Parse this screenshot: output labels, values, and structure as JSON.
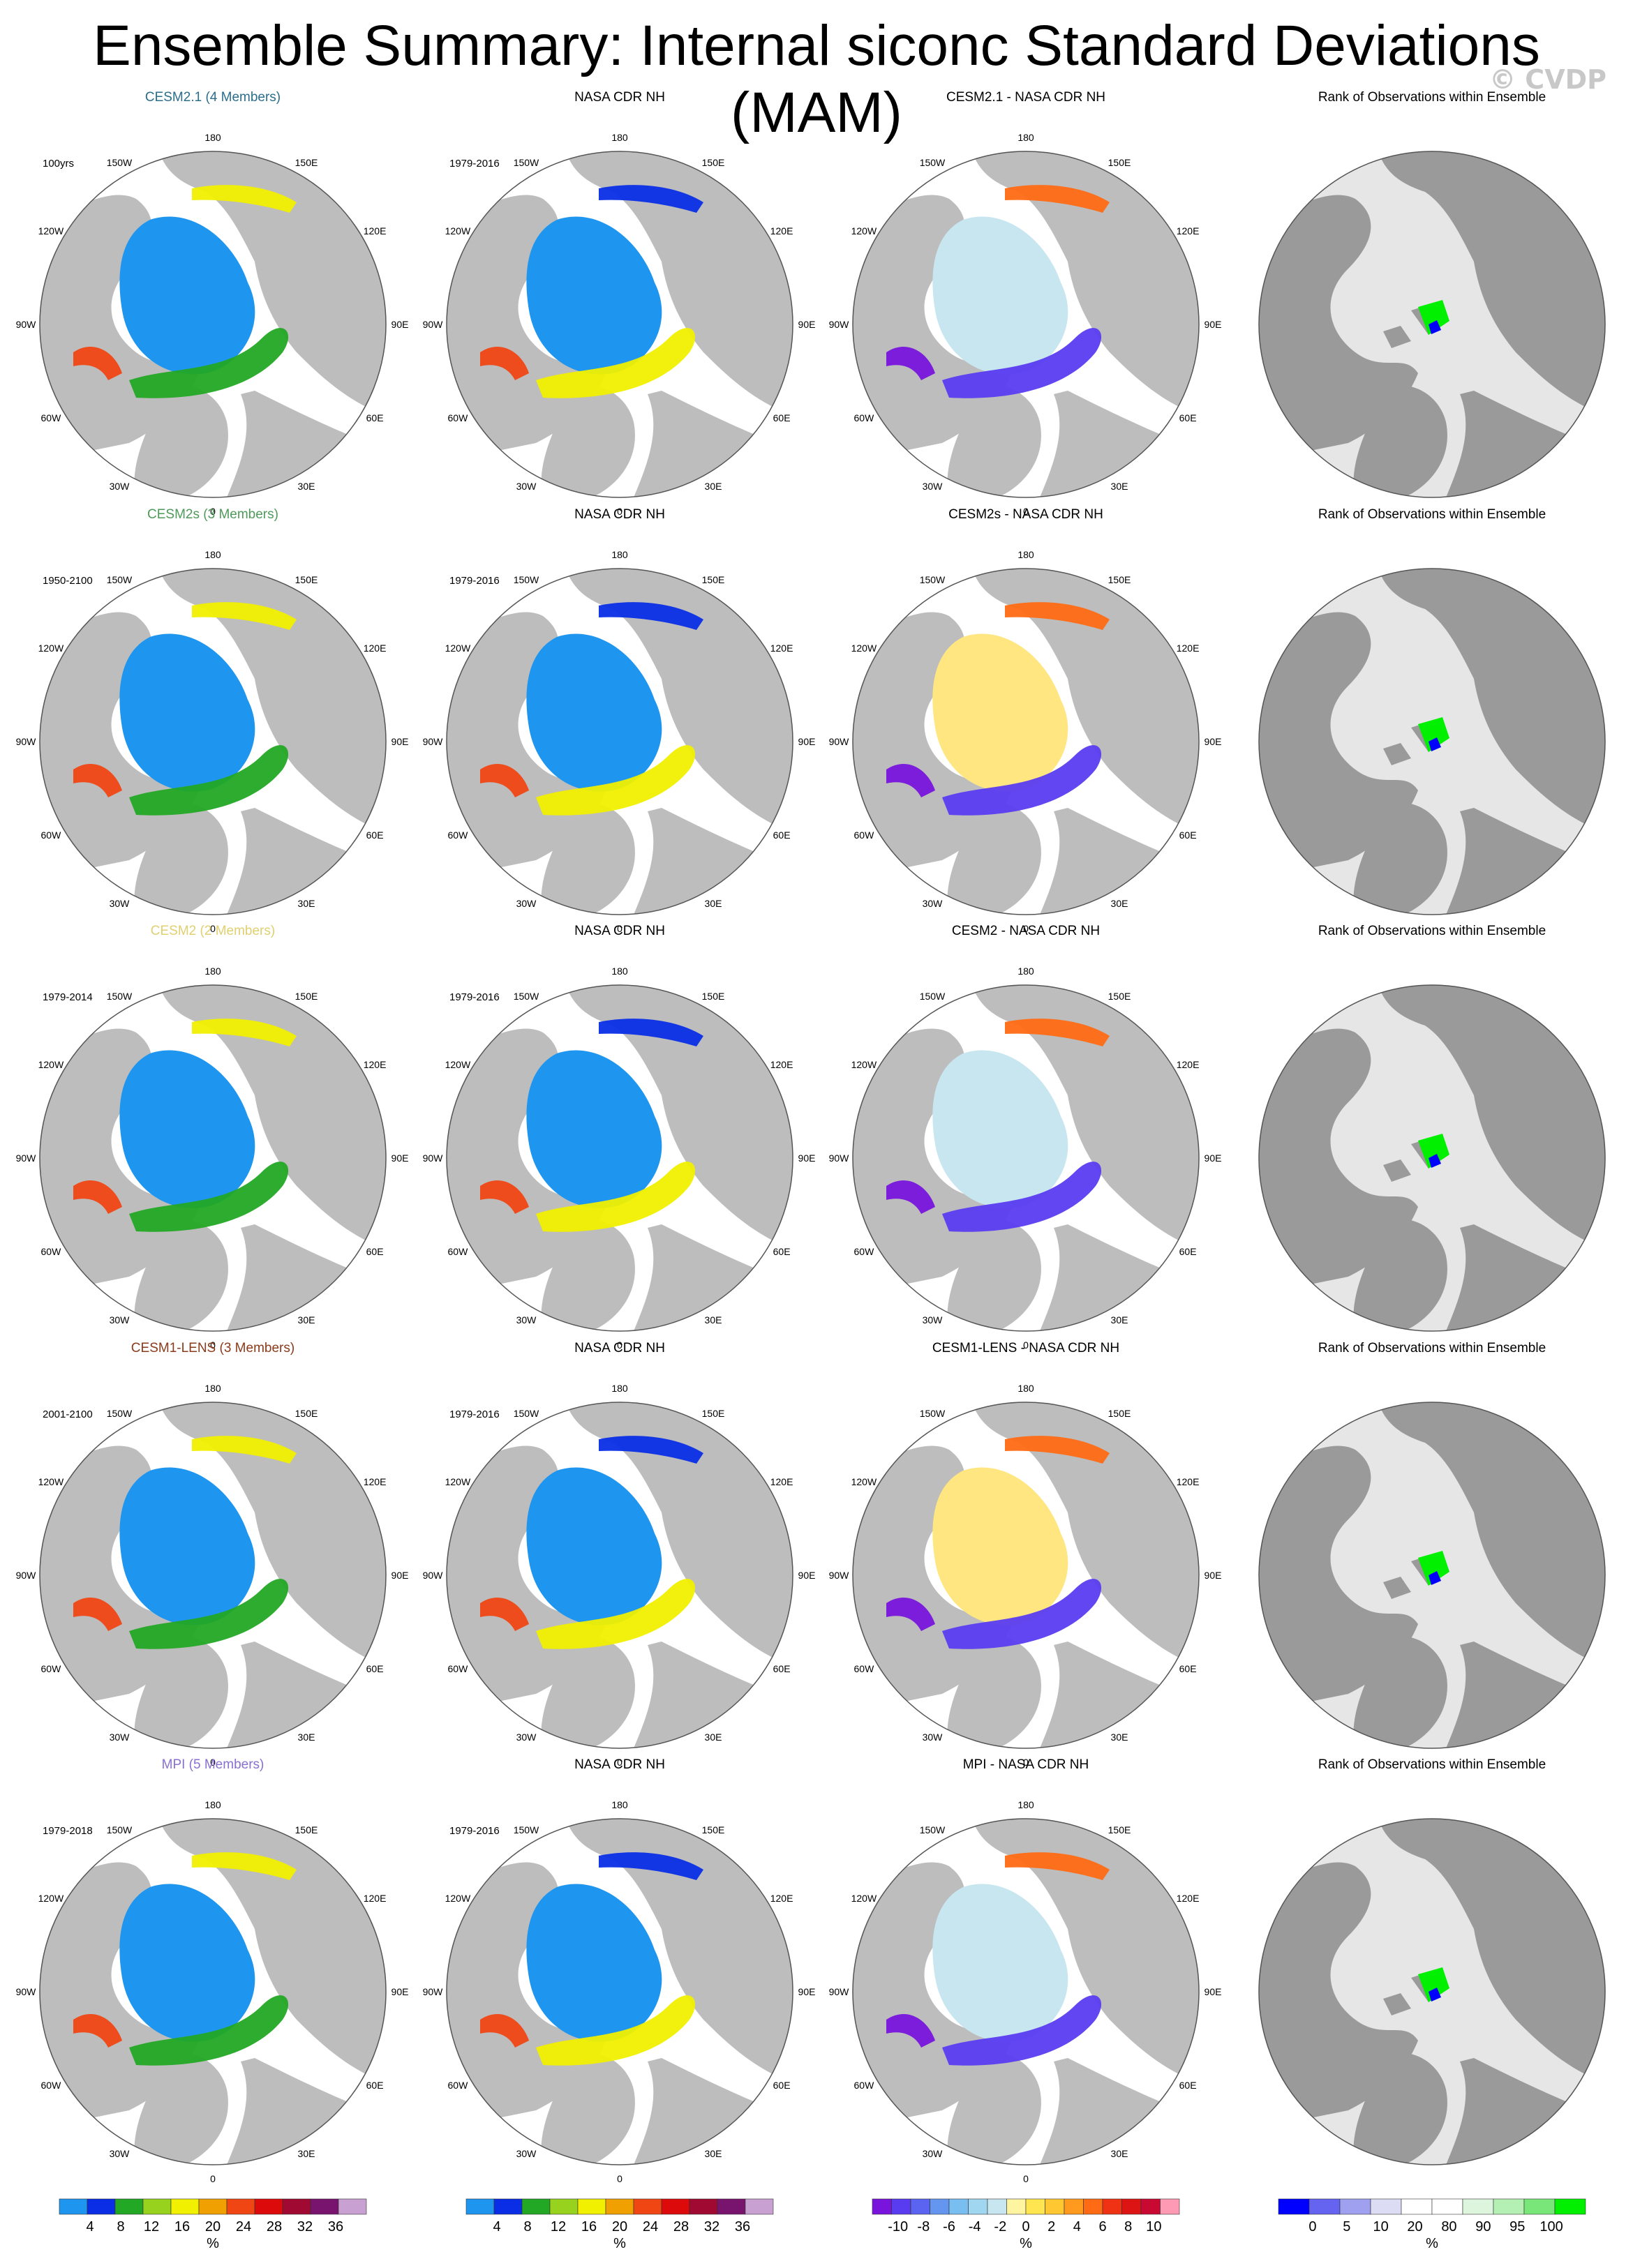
{
  "page": {
    "title": "Ensemble Summary: Internal siconc Standard Deviations (MAM)",
    "watermark": "© CVDP"
  },
  "chart_data": {
    "type": "heatmap",
    "projection": "north-polar-stereographic",
    "rows": [
      {
        "model_title": "CESM2.1 (4 Members)",
        "model_color": "#2a6e8c",
        "model_period": "100yrs",
        "obs_title": "NASA CDR NH",
        "obs_period": "1979-2016",
        "diff_title": "CESM2.1 - NASA CDR NH",
        "rank_title": "Rank of Observations within Ensemble"
      },
      {
        "model_title": "CESM2s (3 Members)",
        "model_color": "#4e9a5a",
        "model_period": "1950-2100",
        "obs_title": "NASA CDR NH",
        "obs_period": "1979-2016",
        "diff_title": "CESM2s - NASA CDR NH",
        "rank_title": "Rank of Observations within Ensemble"
      },
      {
        "model_title": "CESM2 (2 Members)",
        "model_color": "#e0d070",
        "model_period": "1979-2014",
        "obs_title": "NASA CDR NH",
        "obs_period": "1979-2016",
        "diff_title": "CESM2 - NASA CDR NH",
        "rank_title": "Rank of Observations within Ensemble"
      },
      {
        "model_title": "CESM1-LENS (3 Members)",
        "model_color": "#8b3a1a",
        "model_period": "2001-2100",
        "obs_title": "NASA CDR NH",
        "obs_period": "1979-2016",
        "diff_title": "CESM1-LENS - NASA CDR NH",
        "rank_title": "Rank of Observations within Ensemble"
      },
      {
        "model_title": "MPI (5 Members)",
        "model_color": "#8a70d0",
        "model_period": "1979-2018",
        "obs_title": "NASA CDR NH",
        "obs_period": "1979-2016",
        "diff_title": "MPI - NASA CDR NH",
        "rank_title": "Rank of Observations within Ensemble"
      }
    ],
    "longitude_labels": [
      "180",
      "150E",
      "120E",
      "90E",
      "60E",
      "30E",
      "0",
      "30W",
      "60W",
      "90W",
      "120W",
      "150W"
    ],
    "colorbars": [
      {
        "label": "%",
        "ticks": [
          "4",
          "8",
          "12",
          "16",
          "20",
          "24",
          "28",
          "32",
          "36"
        ],
        "colors": [
          "#1e96f0",
          "#0a2ee6",
          "#22a824",
          "#96d21e",
          "#f0f000",
          "#f0a000",
          "#f04614",
          "#dc0a0a",
          "#a00a32",
          "#78146e",
          "#c8a0d2"
        ]
      },
      {
        "label": "%",
        "ticks": [
          "4",
          "8",
          "12",
          "16",
          "20",
          "24",
          "28",
          "32",
          "36"
        ],
        "colors": [
          "#1e96f0",
          "#0a2ee6",
          "#22a824",
          "#96d21e",
          "#f0f000",
          "#f0a000",
          "#f04614",
          "#dc0a0a",
          "#a00a32",
          "#78146e",
          "#c8a0d2"
        ]
      },
      {
        "label": "%",
        "ticks": [
          "-10",
          "-8",
          "-6",
          "-4",
          "-2",
          "0",
          "2",
          "4",
          "6",
          "8",
          "10"
        ],
        "colors": [
          "#7814dc",
          "#5a3cf0",
          "#5a64f0",
          "#6496f0",
          "#78bef0",
          "#a0d6f0",
          "#c8e6f0",
          "#fff5a0",
          "#ffe650",
          "#ffc832",
          "#ff9a1e",
          "#ff6a14",
          "#f03214",
          "#dc1414",
          "#c80a32",
          "#ff9ab4"
        ]
      },
      {
        "label": "%",
        "ticks": [
          "0",
          "5",
          "10",
          "20",
          "80",
          "90",
          "95",
          "100"
        ],
        "colors": [
          "#0000ff",
          "#6464f0",
          "#a0a0f0",
          "#dcdcf5",
          "#ffffff",
          "#ffffff",
          "#dcf5dc",
          "#b4f0b4",
          "#78e678",
          "#00f000"
        ]
      }
    ]
  }
}
